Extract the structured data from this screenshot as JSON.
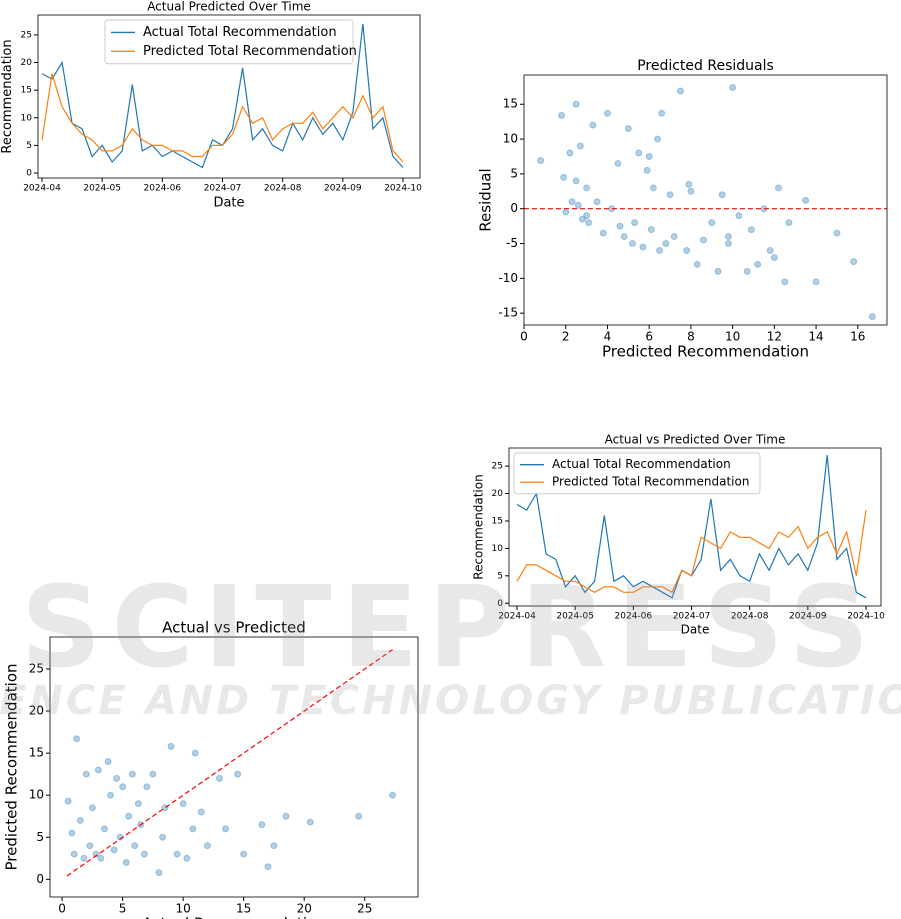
{
  "chart_data": [
    {
      "type": "line",
      "title": "Actual Predicted Over Time",
      "xlabel": "Date",
      "ylabel": "Recommendation",
      "legend": "upper center",
      "categories": [
        "2024-04",
        null,
        null,
        null,
        null,
        null,
        "2024-05",
        null,
        null,
        null,
        null,
        null,
        "2024-06",
        null,
        null,
        null,
        null,
        null,
        "2024-07",
        null,
        null,
        null,
        null,
        null,
        "2024-08",
        null,
        null,
        null,
        null,
        null,
        "2024-09",
        null,
        null,
        null,
        null,
        null,
        "2024-10"
      ],
      "series": [
        {
          "name": "Actual Total Recommendation",
          "color": "#1f77b4",
          "values": [
            18,
            17,
            20,
            9,
            8,
            3,
            5,
            2,
            4,
            16,
            4,
            5,
            3,
            4,
            3,
            2,
            1,
            6,
            5,
            8,
            19,
            6,
            8,
            5,
            4,
            9,
            6,
            10,
            7,
            9,
            6,
            11,
            27,
            8,
            10,
            3,
            1
          ]
        },
        {
          "name": "Predicted Total Recommendation",
          "color": "#ff7f0e",
          "values": [
            6,
            18,
            12,
            9,
            7,
            6,
            4,
            4,
            5,
            8,
            6,
            5,
            5,
            4,
            4,
            3,
            3,
            5,
            5,
            7,
            12,
            9,
            10,
            6,
            8,
            9,
            9,
            11,
            8,
            10,
            12,
            10,
            14,
            10,
            12,
            4,
            2
          ]
        }
      ],
      "ylim": [
        -0.9,
        28.6
      ],
      "yticks": [
        0,
        5,
        10,
        15,
        20,
        25
      ]
    },
    {
      "type": "scatter",
      "title": "Predicted Residuals",
      "xlabel": "Predicted Recommendation",
      "ylabel": "Residual",
      "color": "#1f77b4",
      "hline": 0,
      "hline_color": "#ff0000",
      "x": [
        0.8,
        1.8,
        1.9,
        2.0,
        2.2,
        2.3,
        2.5,
        2.6,
        2.7,
        2.8,
        3.0,
        3.1,
        3.3,
        3.5,
        3.8,
        4.0,
        4.2,
        4.5,
        4.8,
        5.0,
        5.2,
        5.3,
        5.5,
        5.7,
        5.9,
        6.0,
        6.1,
        6.2,
        6.4,
        6.6,
        6.8,
        7.0,
        7.2,
        7.5,
        7.8,
        8.0,
        8.3,
        8.6,
        9.0,
        9.3,
        9.5,
        9.8,
        10.0,
        10.3,
        10.7,
        11.2,
        11.5,
        11.8,
        12.0,
        12.2,
        12.5,
        12.7,
        13.5,
        14.0,
        15.0,
        15.8,
        16.7,
        2.5,
        3.0,
        4.6,
        6.5,
        7.9,
        10.9,
        9.8
      ],
      "values": [
        6.9,
        13.4,
        4.5,
        -0.5,
        8.0,
        1.0,
        15.0,
        0.5,
        9.0,
        -1.5,
        3.0,
        -2.0,
        12.0,
        1.0,
        -3.5,
        13.7,
        0.0,
        6.5,
        -4.0,
        11.5,
        -5.0,
        -2.0,
        8.0,
        -5.5,
        5.5,
        7.5,
        -3.0,
        3.0,
        10.0,
        13.7,
        -5.0,
        2.0,
        -4.0,
        16.9,
        -6.0,
        2.5,
        -8.0,
        -4.5,
        -2.0,
        -9.0,
        2.0,
        -5.0,
        17.4,
        -1.0,
        -9.0,
        -8.0,
        0.0,
        -6.0,
        -7.0,
        3.0,
        -10.5,
        -2.0,
        1.2,
        -10.5,
        -3.5,
        -7.6,
        -15.5,
        4.0,
        -1.0,
        -2.5,
        -6.0,
        3.5,
        -3.0,
        -4.0
      ],
      "xlim": [
        0,
        17.4
      ],
      "xticks": [
        0,
        2,
        4,
        6,
        8,
        10,
        12,
        14,
        16
      ],
      "ylim": [
        -16.7,
        19.2
      ],
      "yticks": [
        -15,
        -10,
        -5,
        0,
        5,
        10,
        15
      ]
    },
    {
      "type": "line",
      "title": "Actual vs Predicted Over Time",
      "xlabel": "Date",
      "ylabel": "Recommendation",
      "legend": "upper left",
      "categories": [
        "2024-04",
        null,
        null,
        null,
        null,
        null,
        "2024-05",
        null,
        null,
        null,
        null,
        null,
        "2024-06",
        null,
        null,
        null,
        null,
        null,
        "2024-07",
        null,
        null,
        null,
        null,
        null,
        "2024-08",
        null,
        null,
        null,
        null,
        null,
        "2024-09",
        null,
        null,
        null,
        null,
        null,
        "2024-10"
      ],
      "series": [
        {
          "name": "Actual Total Recommendation",
          "color": "#1f77b4",
          "values": [
            18,
            17,
            20,
            9,
            8,
            3,
            5,
            2,
            4,
            16,
            4,
            5,
            3,
            4,
            3,
            2,
            1,
            6,
            5,
            8,
            19,
            6,
            8,
            5,
            4,
            9,
            6,
            10,
            7,
            9,
            6,
            11,
            27,
            8,
            10,
            2,
            1
          ]
        },
        {
          "name": "Predicted Total Recommendation",
          "color": "#ff7f0e",
          "values": [
            4,
            7,
            7,
            6,
            5,
            4,
            4,
            3,
            2,
            3,
            3,
            2,
            2,
            3,
            3,
            3,
            2,
            6,
            5,
            12,
            11,
            10,
            13,
            12,
            12,
            11,
            10,
            13,
            12,
            14,
            10,
            12,
            13,
            9,
            13,
            5,
            17
          ]
        }
      ],
      "ylim": [
        -0.5,
        28.3
      ],
      "yticks": [
        0,
        5,
        10,
        15,
        20,
        25
      ]
    },
    {
      "type": "scatter",
      "title": "Actual vs Predicted",
      "xlabel": "Actual Recommendation",
      "ylabel": "Predicted Recommendation",
      "color": "#1f77b4",
      "diagonal": [
        0.4,
        27.3
      ],
      "diagonal_color": "#ff0000",
      "x": [
        0.5,
        0.8,
        1.0,
        1.2,
        1.5,
        1.8,
        2.0,
        2.3,
        2.5,
        2.8,
        3.0,
        3.2,
        3.5,
        3.8,
        4.0,
        4.3,
        4.5,
        4.8,
        5.0,
        5.3,
        5.5,
        5.8,
        6.0,
        6.3,
        6.5,
        6.8,
        7.0,
        7.5,
        8.0,
        8.3,
        8.5,
        9.0,
        9.5,
        10.0,
        10.3,
        10.8,
        11.0,
        11.5,
        12.0,
        13.0,
        13.5,
        14.5,
        15.0,
        16.5,
        17.0,
        17.5,
        18.5,
        20.5,
        24.5,
        27.3
      ],
      "values": [
        9.3,
        5.5,
        3.0,
        16.7,
        7.0,
        2.5,
        12.5,
        4.0,
        8.5,
        3.0,
        13.0,
        2.5,
        6.0,
        14.0,
        10.0,
        3.5,
        12.0,
        5.0,
        11.0,
        2.0,
        7.5,
        12.5,
        4.0,
        9.0,
        6.5,
        3.0,
        11.0,
        12.5,
        0.8,
        5.0,
        8.5,
        15.8,
        3.0,
        9.0,
        2.5,
        6.0,
        15.0,
        8.0,
        4.0,
        12.0,
        6.0,
        12.5,
        3.0,
        6.5,
        1.5,
        4.0,
        7.5,
        6.8,
        7.5,
        10.0
      ],
      "xlim": [
        -1.0,
        29.4
      ],
      "xticks": [
        0,
        5,
        10,
        15,
        20,
        25
      ],
      "ylim": [
        -2.1,
        28.8
      ],
      "yticks": [
        0,
        5,
        10,
        15,
        20,
        25
      ]
    }
  ],
  "watermark": {
    "line1": "SCITEPRESS",
    "line2": "SCIENCE AND TECHNOLOGY PUBLICATIONS"
  }
}
